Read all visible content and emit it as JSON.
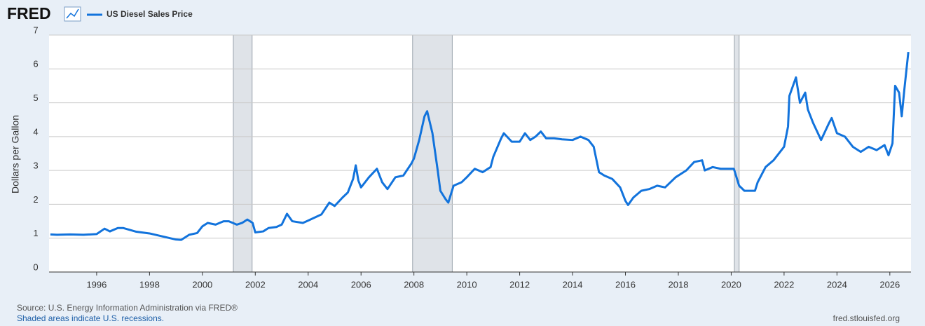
{
  "logo": "FRED",
  "chart_data": {
    "type": "line",
    "ylabel": "Dollars per Gallon",
    "x": [
      1994.25,
      1994.5,
      1995,
      1995.5,
      1996,
      1996.3,
      1996.5,
      1996.8,
      1997,
      1997.5,
      1998,
      1998.5,
      1999,
      1999.2,
      1999.5,
      1999.8,
      2000,
      2000.2,
      2000.5,
      2000.8,
      2001,
      2001.3,
      2001.5,
      2001.7,
      2001.9,
      2002,
      2002.3,
      2002.5,
      2002.8,
      2003,
      2003.2,
      2003.4,
      2003.8,
      2004,
      2004.5,
      2004.8,
      2005,
      2005.3,
      2005.5,
      2005.7,
      2005.8,
      2005.9,
      2006,
      2006.3,
      2006.6,
      2006.8,
      2007,
      2007.3,
      2007.6,
      2007.9,
      2008,
      2008.2,
      2008.4,
      2008.5,
      2008.7,
      2008.9,
      2009,
      2009.2,
      2009.3,
      2009.5,
      2009.8,
      2010,
      2010.3,
      2010.6,
      2010.9,
      2011,
      2011.3,
      2011.4,
      2011.7,
      2012,
      2012.2,
      2012.4,
      2012.6,
      2012.8,
      2013,
      2013.3,
      2013.6,
      2014,
      2014.3,
      2014.6,
      2014.8,
      2015,
      2015.2,
      2015.5,
      2015.8,
      2016,
      2016.1,
      2016.3,
      2016.6,
      2016.9,
      2017.2,
      2017.5,
      2017.9,
      2018.3,
      2018.6,
      2018.9,
      2019,
      2019.3,
      2019.6,
      2019.9,
      2020.1,
      2020.3,
      2020.5,
      2020.9,
      2021,
      2021.3,
      2021.6,
      2021.9,
      2022,
      2022.15,
      2022.2,
      2022.45,
      2022.6,
      2022.8,
      2022.9,
      2023.1,
      2023.4,
      2023.7,
      2023.8,
      2024,
      2024.3,
      2024.6,
      2024.9,
      2025.2,
      2025.5,
      2025.8,
      2025.95,
      2026.1,
      2026.2,
      2026.35,
      2026.45,
      2026.55,
      2026.7
    ],
    "series": [
      {
        "name": "US Diesel Sales Price",
        "color": "#1273dc",
        "values": [
          1.11,
          1.1,
          1.11,
          1.1,
          1.12,
          1.28,
          1.2,
          1.3,
          1.3,
          1.19,
          1.14,
          1.05,
          0.96,
          0.95,
          1.1,
          1.15,
          1.35,
          1.45,
          1.4,
          1.5,
          1.5,
          1.4,
          1.45,
          1.55,
          1.45,
          1.17,
          1.2,
          1.3,
          1.33,
          1.4,
          1.72,
          1.5,
          1.45,
          1.52,
          1.7,
          2.05,
          1.95,
          2.2,
          2.35,
          2.75,
          3.15,
          2.7,
          2.5,
          2.8,
          3.05,
          2.65,
          2.45,
          2.8,
          2.85,
          3.2,
          3.35,
          3.9,
          4.6,
          4.75,
          4.1,
          3.0,
          2.4,
          2.15,
          2.05,
          2.55,
          2.65,
          2.8,
          3.05,
          2.95,
          3.1,
          3.4,
          3.95,
          4.1,
          3.85,
          3.85,
          4.1,
          3.9,
          4.0,
          4.15,
          3.95,
          3.95,
          3.92,
          3.9,
          4.0,
          3.9,
          3.7,
          2.95,
          2.85,
          2.75,
          2.5,
          2.1,
          1.98,
          2.2,
          2.4,
          2.45,
          2.55,
          2.5,
          2.8,
          3.0,
          3.25,
          3.3,
          3.0,
          3.1,
          3.05,
          3.05,
          3.05,
          2.55,
          2.4,
          2.4,
          2.65,
          3.1,
          3.3,
          3.6,
          3.7,
          4.3,
          5.2,
          5.75,
          5.0,
          5.3,
          4.8,
          4.4,
          3.9,
          4.4,
          4.55,
          4.1,
          4.0,
          3.7,
          3.55,
          3.7,
          3.6,
          3.75,
          3.45,
          3.8,
          5.5,
          5.3,
          4.6,
          5.4,
          6.5
        ]
      }
    ],
    "shaded_periods": [
      [
        2001.17,
        2001.88
      ],
      [
        2007.95,
        2009.45
      ],
      [
        2020.12,
        2020.3
      ]
    ],
    "shade_color": "#dfe3e8",
    "xlim": [
      1994.2,
      2026.8
    ],
    "ylim": [
      0,
      7
    ],
    "xticks": [
      1996,
      1998,
      2000,
      2002,
      2004,
      2006,
      2008,
      2010,
      2012,
      2014,
      2016,
      2018,
      2020,
      2022,
      2024,
      2026
    ],
    "yticks": [
      0,
      1,
      2,
      3,
      4,
      5,
      6,
      7
    ],
    "grid": true,
    "source": "Source: U.S. Energy Information Administration via FRED®",
    "note": "Shaded areas indicate U.S. recessions.",
    "url": "fred.stlouisfed.org"
  }
}
